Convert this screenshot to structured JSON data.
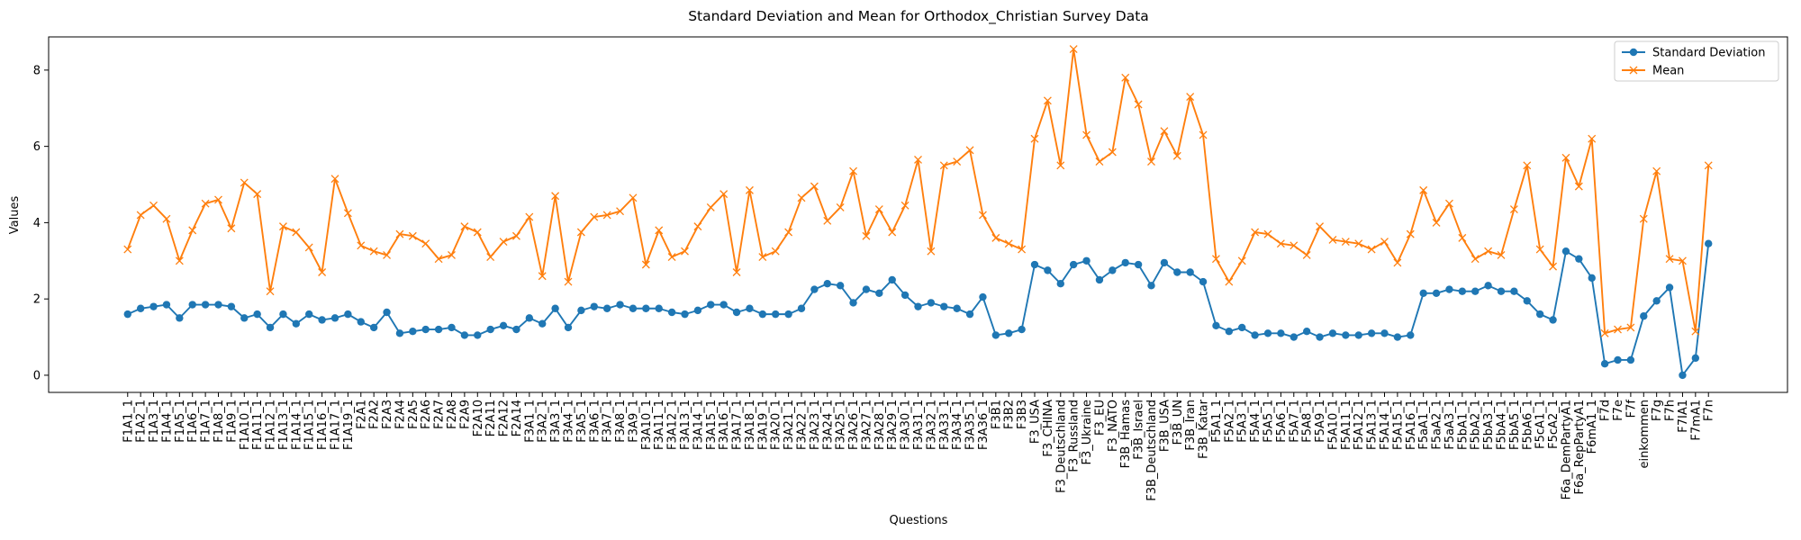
{
  "chart_data": {
    "type": "line",
    "title": "Standard Deviation and Mean for Orthodox_Christian Survey Data",
    "x_label": "Questions",
    "y_label": "Values",
    "categories": [
      "F1A1_1",
      "F1A2_1",
      "F1A3_1",
      "F1A4_1",
      "F1A5_1",
      "F1A6_1",
      "F1A7_1",
      "F1A8_1",
      "F1A9_1",
      "F1A10_1",
      "F1A11_1",
      "F1A12_1",
      "F1A13_1",
      "F1A14_1",
      "F1A15_1",
      "F1A16_1",
      "F1A17_1",
      "F1A19_1",
      "F2A1",
      "F2A2",
      "F2A3",
      "F2A4",
      "F2A5",
      "F2A6",
      "F2A7",
      "F2A8",
      "F2A9",
      "F2A10",
      "F2A11",
      "F2A12",
      "F2A14",
      "F3A1_1",
      "F3A2_1",
      "F3A3_1",
      "F3A4_1",
      "F3A5_1",
      "F3A6_1",
      "F3A7_1",
      "F3A8_1",
      "F3A9_1",
      "F3A10_1",
      "F3A11_1",
      "F3A12_1",
      "F3A13_1",
      "F3A14_1",
      "F3A15_1",
      "F3A16_1",
      "F3A17_1",
      "F3A18_1",
      "F3A19_1",
      "F3A20_1",
      "F3A21_1",
      "F3A22_1",
      "F3A23_1",
      "F3A24_1",
      "F3A25_1",
      "F3A26_1",
      "F3A27_1",
      "F3A28_1",
      "F3A29_1",
      "F3A30_1",
      "F3A31_1",
      "F3A32_1",
      "F3A33_1",
      "F3A34_1",
      "F3A35_1",
      "F3A36_1",
      "F3B1",
      "F3B2",
      "F3B3",
      "F3_USA",
      "F3_CHINA",
      "F3_Deutschland",
      "F3_Russland",
      "F3_Ukraine",
      "F3_EU",
      "F3_NATO",
      "F3B_Hamas",
      "F3B_Israel",
      "F3B_Deutschland",
      "F3B_USA",
      "F3B_UN",
      "F3B_Iran",
      "F3B_Katar",
      "F5A1_1",
      "F5A2_1",
      "F5A3_1",
      "F5A4_1",
      "F5A5_1",
      "F5A6_1",
      "F5A7_1",
      "F5A8_1",
      "F5A9_1",
      "F5A10_1",
      "F5A11_1",
      "F5A12_1",
      "F5A13_1",
      "F5A14_1",
      "F5A15_1",
      "F5A16_1",
      "F5aA1_1",
      "F5aA2_1",
      "F5aA3_1",
      "F5bA1_1",
      "F5bA2_1",
      "F5bA3_1",
      "F5bA4_1",
      "F5bA5_1",
      "F5bA6_1",
      "F5cA1_1",
      "F5cA2_1",
      "F6a_DemPartyA1",
      "F6a_RepPartyA1",
      "F6mA1_1",
      "F7d",
      "F7e",
      "F7f",
      "einkommen",
      "F7g",
      "F7h",
      "F7IA1",
      "F7mA1",
      "F7n"
    ],
    "series": [
      {
        "name": "Standard Deviation",
        "color": "#1f77b4",
        "marker": "o",
        "values": [
          1.6,
          1.75,
          1.8,
          1.85,
          1.5,
          1.85,
          1.85,
          1.85,
          1.8,
          1.5,
          1.6,
          1.25,
          1.6,
          1.35,
          1.6,
          1.45,
          1.5,
          1.6,
          1.4,
          1.25,
          1.65,
          1.1,
          1.15,
          1.2,
          1.2,
          1.25,
          1.05,
          1.05,
          1.2,
          1.3,
          1.2,
          1.5,
          1.35,
          1.75,
          1.25,
          1.7,
          1.8,
          1.75,
          1.85,
          1.75,
          1.75,
          1.75,
          1.65,
          1.6,
          1.7,
          1.85,
          1.85,
          1.65,
          1.75,
          1.6,
          1.6,
          1.6,
          1.75,
          2.25,
          2.4,
          2.35,
          1.9,
          2.25,
          2.15,
          2.5,
          2.1,
          1.8,
          1.9,
          1.8,
          1.75,
          1.6,
          2.05,
          1.05,
          1.1,
          1.2,
          2.9,
          2.75,
          2.4,
          2.9,
          3.0,
          2.5,
          2.75,
          2.95,
          2.9,
          2.35,
          2.95,
          2.7,
          2.7,
          2.45,
          1.3,
          1.15,
          1.25,
          1.05,
          1.1,
          1.1,
          1.0,
          1.15,
          1.0,
          1.1,
          1.05,
          1.05,
          1.1,
          1.1,
          1.0,
          1.05,
          2.15,
          2.15,
          2.25,
          2.2,
          2.2,
          2.35,
          2.2,
          2.2,
          1.95,
          1.6,
          1.45,
          3.25,
          3.05,
          2.55,
          0.3,
          0.4,
          0.4,
          1.55,
          1.95,
          2.3,
          0.0,
          0.45,
          3.45
        ]
      },
      {
        "name": "Mean",
        "color": "#ff7f0e",
        "marker": "x",
        "values": [
          3.3,
          4.2,
          4.45,
          4.1,
          3.0,
          3.8,
          4.5,
          4.6,
          3.85,
          5.05,
          4.75,
          2.2,
          3.9,
          3.75,
          3.35,
          2.7,
          5.15,
          4.25,
          3.4,
          3.25,
          3.15,
          3.7,
          3.65,
          3.45,
          3.05,
          3.15,
          3.9,
          3.75,
          3.1,
          3.5,
          3.65,
          4.15,
          2.6,
          4.7,
          2.45,
          3.75,
          4.15,
          4.2,
          4.3,
          4.65,
          2.9,
          3.8,
          3.1,
          3.25,
          3.9,
          4.4,
          4.75,
          2.7,
          4.85,
          3.1,
          3.25,
          3.75,
          4.65,
          4.95,
          4.05,
          4.4,
          5.35,
          3.65,
          4.35,
          3.75,
          4.45,
          5.65,
          3.25,
          5.5,
          5.6,
          5.9,
          4.2,
          3.6,
          3.45,
          3.3,
          6.2,
          7.2,
          5.5,
          8.55,
          6.3,
          5.6,
          5.85,
          7.8,
          7.1,
          5.6,
          6.4,
          5.75,
          7.3,
          6.3,
          3.05,
          2.45,
          3.0,
          3.75,
          3.7,
          3.45,
          3.4,
          3.15,
          3.9,
          3.55,
          3.5,
          3.45,
          3.3,
          3.5,
          2.95,
          3.7,
          4.85,
          4.0,
          4.5,
          3.6,
          3.05,
          3.25,
          3.15,
          4.35,
          5.5,
          3.3,
          2.85,
          5.7,
          4.95,
          6.2,
          1.1,
          1.2,
          1.25,
          4.1,
          5.35,
          3.05,
          3.0,
          1.15,
          5.5
        ]
      }
    ],
    "ylim": [
      -0.45,
      8.87
    ],
    "yticks": [
      0,
      2,
      4,
      6,
      8
    ],
    "grid": false,
    "legend": "upper right"
  }
}
